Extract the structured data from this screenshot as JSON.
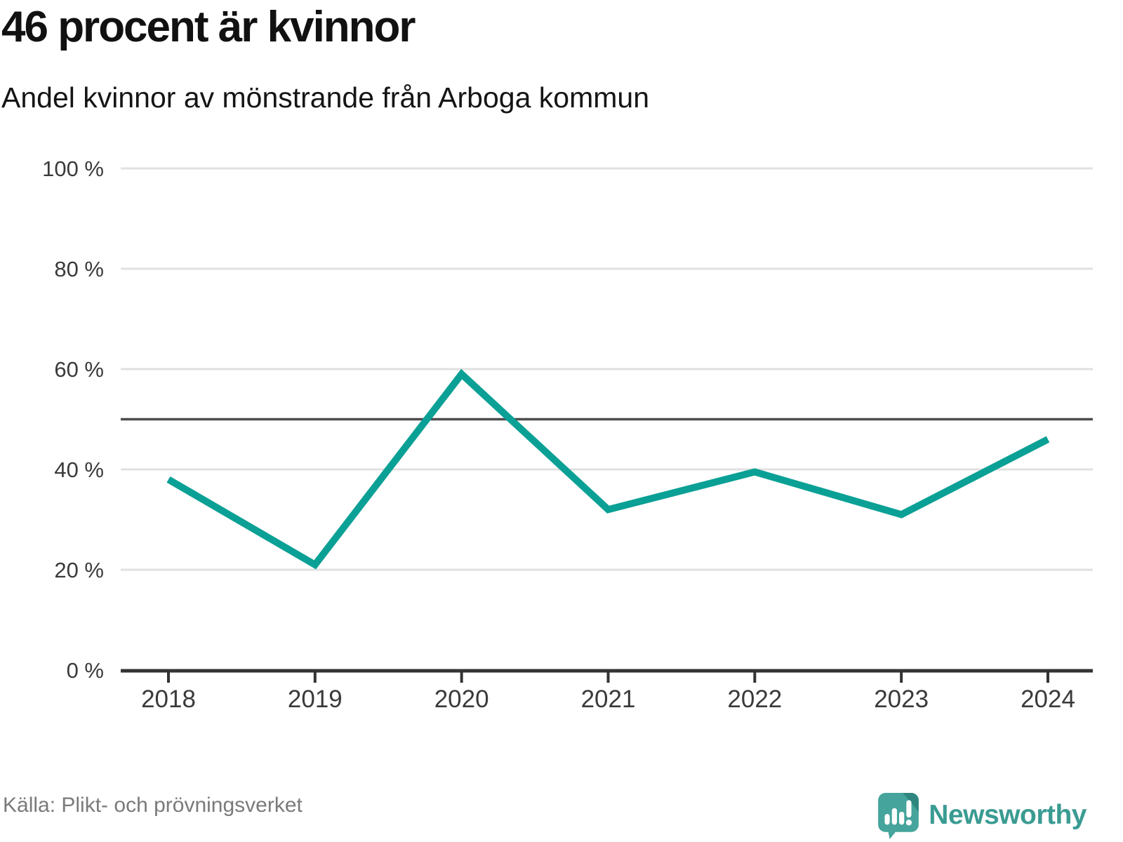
{
  "header": {
    "title": "46 procent är kvinnor",
    "subtitle": "Andel kvinnor av mönstrande från Arboga kommun"
  },
  "footer": {
    "source": "Källa: Plikt- och prövningsverket",
    "brand": "Newsworthy"
  },
  "colors": {
    "line": "#0aa095",
    "reference_line": "#4d4d4d",
    "gridline": "#e0e0e0",
    "axis": "#333333",
    "tick_label": "#3a3a3a",
    "source_text": "#7a7a7a",
    "brand_teal": "#3a9b92",
    "logo_bubble": "#45a49b",
    "logo_fold": "#2f867e"
  },
  "chart_data": {
    "type": "line",
    "x": [
      "2018",
      "2019",
      "2020",
      "2021",
      "2022",
      "2023",
      "2024"
    ],
    "series": [
      {
        "name": "Andel kvinnor av mönstrande",
        "values": [
          38,
          21,
          59,
          32,
          39.5,
          31,
          46
        ]
      }
    ],
    "title": "46 procent är kvinnor",
    "subtitle": "Andel kvinnor av mönstrande från Arboga kommun",
    "xlabel": "",
    "ylabel": "",
    "ylim": [
      0,
      100
    ],
    "yticks": [
      0,
      20,
      40,
      60,
      80,
      100
    ],
    "ytick_suffix": " %",
    "reference_line": 50,
    "grid": true,
    "legend": false
  }
}
